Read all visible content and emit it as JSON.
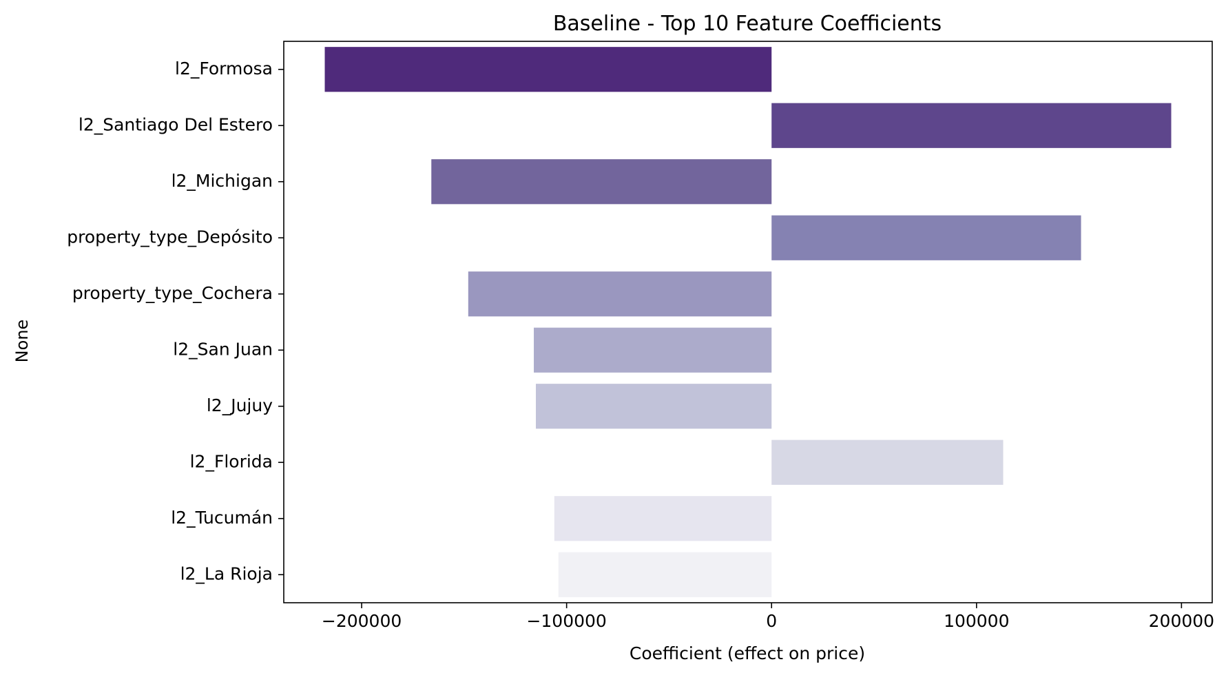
{
  "chart_data": {
    "type": "bar",
    "orientation": "horizontal",
    "title": "Baseline - Top 10 Feature Coefficients",
    "xlabel": "Coefficient (effect on price)",
    "ylabel": "None",
    "categories": [
      "l2_Formosa",
      "l2_Santiago Del Estero",
      "l2_Michigan",
      "property_type_Depósito",
      "property_type_Cochera",
      "l2_San Juan",
      "l2_Jujuy",
      "l2_Florida",
      "l2_Tucumán",
      "l2_La Rioja"
    ],
    "values": [
      -218000,
      195000,
      -166000,
      151000,
      -148000,
      -116000,
      -115000,
      113000,
      -106000,
      -104000
    ],
    "xlim": [
      -238000,
      215000
    ],
    "xticks": [
      -200000,
      -100000,
      0,
      100000,
      200000
    ],
    "xtick_labels": [
      "−200000",
      "−100000",
      "0",
      "100000",
      "200000"
    ],
    "grid": false,
    "bar_colors": [
      "#4f2a7b",
      "#5e468c",
      "#72659c",
      "#8582b2",
      "#9a97bf",
      "#acabcb",
      "#c1c2d9",
      "#d7d8e5",
      "#e6e5ef",
      "#f1f1f5"
    ]
  }
}
